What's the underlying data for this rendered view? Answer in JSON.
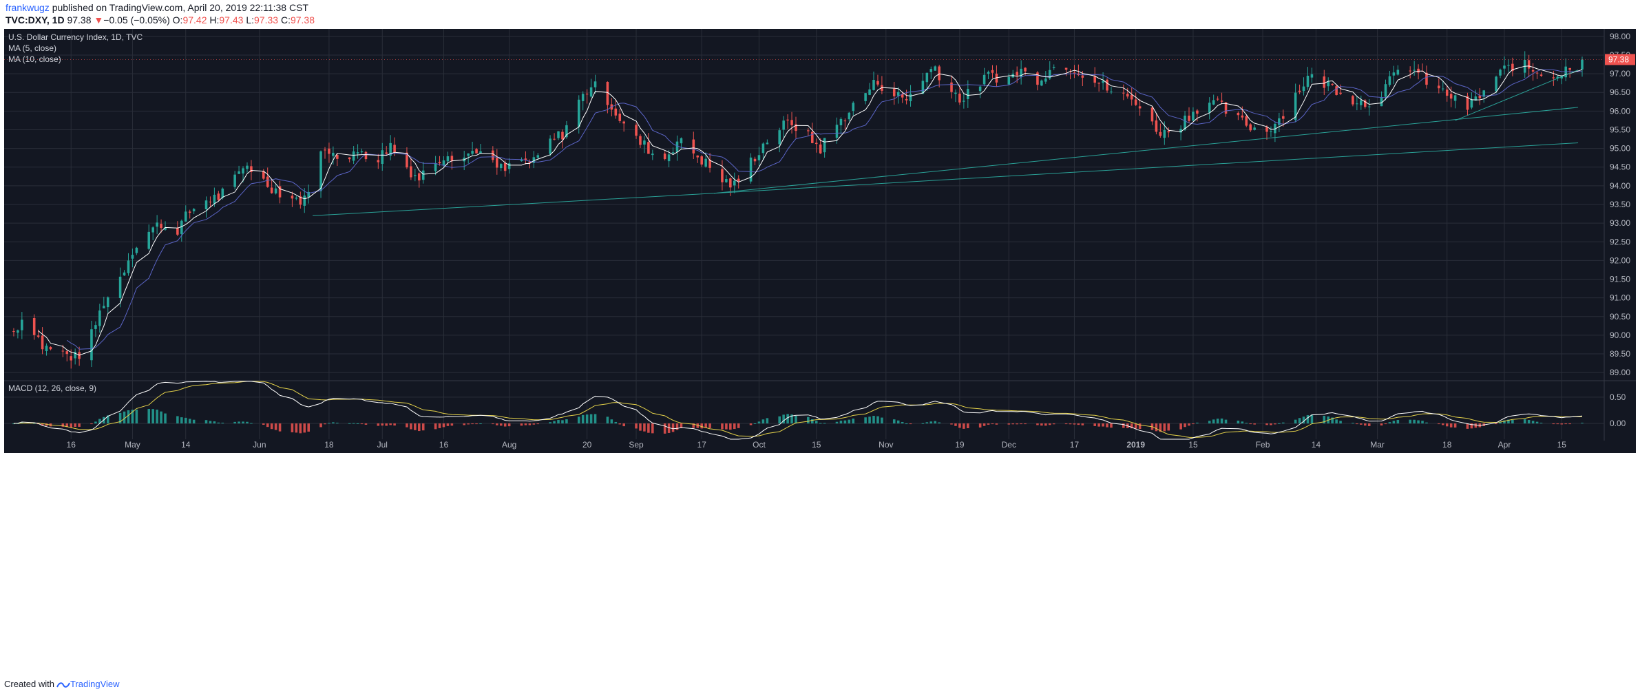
{
  "header": {
    "author": "frankwugz",
    "published_text": " published on TradingView.com, April 20, 2019 22:11:38 CST",
    "symbol": "TVC:DXY, 1D",
    "last": "97.38",
    "change": "−0.05 (−0.05%)",
    "open_label": "O:",
    "open": "97.42",
    "high_label": "H:",
    "high": "97.43",
    "low_label": "L:",
    "low": "97.33",
    "close_label": "C:",
    "close": "97.38"
  },
  "legend": {
    "title": "U.S. Dollar Currency Index, 1D, TVC",
    "ma5": "MA (5, close)",
    "ma10": "MA (10, close)",
    "macd": "MACD (12, 26, close, 9)"
  },
  "price_label": "97.38",
  "footer": {
    "created_with": "Created with",
    "brand": "TradingView"
  },
  "colors": {
    "background": "#131722",
    "grid": "#2a2e39",
    "up": "#26a69a",
    "down": "#ef5350",
    "ma5": "#ffffff",
    "ma10": "#5b65c7",
    "trendline": "#2aa197",
    "macd_line": "#ffffff",
    "signal_line": "#e5d24a",
    "text": "#b2b5be"
  },
  "chart_data": [
    {
      "type": "candlestick",
      "title": "U.S. Dollar Currency Index, 1D, TVC",
      "y_ticks": [
        "98.00",
        "97.50",
        "97.00",
        "96.50",
        "96.00",
        "95.50",
        "95.00",
        "94.50",
        "94.00",
        "93.50",
        "93.00",
        "92.50",
        "92.00",
        "91.50",
        "91.00",
        "90.50",
        "90.00",
        "89.50",
        "89.00"
      ],
      "ylim": [
        88.8,
        98.2
      ],
      "x_ticks": [
        "16",
        "May",
        "14",
        "Jun",
        "18",
        "Jul",
        "16",
        "Aug",
        "20",
        "Sep",
        "17",
        "Oct",
        "15",
        "Nov",
        "19",
        "Dec",
        "17",
        "2019",
        "15",
        "Feb",
        "14",
        "Mar",
        "18",
        "Apr",
        "15"
      ],
      "x_ticks_bold": [
        "2019"
      ],
      "grid": true,
      "series": [
        "MA (5, close)",
        "MA (10, close)"
      ],
      "trendlines": [
        {
          "from": [
            "Jun 14",
            93.2
          ],
          "to": [
            "Sep 20",
            93.8
          ]
        },
        {
          "from": [
            "Sep 20",
            93.8
          ],
          "to": [
            "Apr 20",
            95.15
          ]
        },
        {
          "from": [
            "Sep 20",
            93.8
          ],
          "to": [
            "Apr 20",
            96.1
          ]
        },
        {
          "from": [
            "Mar 20",
            95.75
          ],
          "to": [
            "Apr 20",
            97.1
          ]
        }
      ],
      "price_path": [
        [
          "Apr 2",
          90.1
        ],
        [
          "Apr 5",
          90.6
        ],
        [
          "Apr 9",
          89.7
        ],
        [
          "Apr 13",
          89.55
        ],
        [
          "Apr 17",
          89.4
        ],
        [
          "Apr 20",
          89.7
        ],
        [
          "Apr 24",
          90.9
        ],
        [
          "Apr 27",
          91.3
        ],
        [
          "May 1",
          92.3
        ],
        [
          "May 4",
          92.7
        ],
        [
          "May 8",
          93.0
        ],
        [
          "May 11",
          92.7
        ],
        [
          "May 15",
          93.3
        ],
        [
          "May 18",
          93.6
        ],
        [
          "May 22",
          93.7
        ],
        [
          "May 25",
          94.0
        ],
        [
          "May 29",
          94.6
        ],
        [
          "Jun 1",
          94.2
        ],
        [
          "Jun 5",
          93.9
        ],
        [
          "Jun 8",
          93.7
        ],
        [
          "Jun 12",
          93.6
        ],
        [
          "Jun 15",
          94.8
        ],
        [
          "Jun 19",
          95.0
        ],
        [
          "Jun 22",
          94.6
        ],
        [
          "Jun 26",
          95.0
        ],
        [
          "Jun 29",
          94.6
        ],
        [
          "Jul 3",
          95.1
        ],
        [
          "Jul 6",
          94.6
        ],
        [
          "Jul 10",
          94.2
        ],
        [
          "Jul 13",
          94.6
        ],
        [
          "Jul 17",
          94.9
        ],
        [
          "Jul 20",
          94.7
        ],
        [
          "Jul 24",
          95.0
        ],
        [
          "Jul 27",
          94.6
        ],
        [
          "Jul 31",
          94.4
        ],
        [
          "Aug 3",
          94.7
        ],
        [
          "Aug 7",
          94.6
        ],
        [
          "Aug 10",
          95.1
        ],
        [
          "Aug 14",
          95.4
        ],
        [
          "Aug 17",
          96.1
        ],
        [
          "Aug 21",
          96.7
        ],
        [
          "Aug 24",
          96.5
        ],
        [
          "Aug 28",
          95.8
        ],
        [
          "Aug 31",
          95.3
        ],
        [
          "Sep 4",
          95.0
        ],
        [
          "Sep 7",
          94.6
        ],
        [
          "Sep 11",
          95.2
        ],
        [
          "Sep 14",
          95.0
        ],
        [
          "Sep 18",
          94.6
        ],
        [
          "Sep 21",
          94.2
        ],
        [
          "Sep 25",
          94.0
        ],
        [
          "Sep 28",
          94.5
        ],
        [
          "Oct 2",
          95.1
        ],
        [
          "Oct 5",
          95.5
        ],
        [
          "Oct 9",
          95.7
        ],
        [
          "Oct 12",
          95.4
        ],
        [
          "Oct 16",
          95.0
        ],
        [
          "Oct 19",
          95.5
        ],
        [
          "Oct 23",
          96.0
        ],
        [
          "Oct 26",
          96.4
        ],
        [
          "Oct 30",
          96.8
        ],
        [
          "Nov 2",
          96.5
        ],
        [
          "Nov 6",
          96.3
        ],
        [
          "Nov 9",
          96.8
        ],
        [
          "Nov 13",
          97.2
        ],
        [
          "Nov 16",
          96.6
        ],
        [
          "Nov 20",
          96.3
        ],
        [
          "Nov 23",
          96.7
        ],
        [
          "Nov 27",
          97.0
        ],
        [
          "Nov 30",
          96.8
        ],
        [
          "Dec 4",
          97.1
        ],
        [
          "Dec 7",
          96.8
        ],
        [
          "Dec 11",
          97.1
        ],
        [
          "Dec 14",
          97.3
        ],
        [
          "Dec 18",
          97.1
        ],
        [
          "Dec 21",
          96.9
        ],
        [
          "Dec 25",
          96.6
        ],
        [
          "Dec 28",
          96.4
        ],
        [
          "Jan 1",
          96.3
        ],
        [
          "Jan 4",
          95.7
        ],
        [
          "Jan 8",
          95.4
        ],
        [
          "Jan 11",
          95.6
        ],
        [
          "Jan 15",
          96.0
        ],
        [
          "Jan 18",
          96.3
        ],
        [
          "Jan 22",
          96.1
        ],
        [
          "Jan 25",
          95.8
        ],
        [
          "Jan 29",
          95.6
        ],
        [
          "Feb 1",
          95.4
        ],
        [
          "Feb 5",
          95.8
        ],
        [
          "Feb 8",
          96.3
        ],
        [
          "Feb 12",
          96.9
        ],
        [
          "Feb 15",
          96.8
        ],
        [
          "Feb 19",
          96.6
        ],
        [
          "Feb 22",
          96.4
        ],
        [
          "Feb 26",
          96.2
        ],
        [
          "Mar 1",
          96.4
        ],
        [
          "Mar 5",
          96.9
        ],
        [
          "Mar 8",
          97.3
        ],
        [
          "Mar 12",
          96.9
        ],
        [
          "Mar 15",
          96.6
        ],
        [
          "Mar 19",
          96.4
        ],
        [
          "Mar 22",
          96.0
        ],
        [
          "Mar 26",
          96.4
        ],
        [
          "Mar 29",
          96.8
        ],
        [
          "Apr 2",
          97.1
        ],
        [
          "Apr 5",
          97.3
        ],
        [
          "Apr 9",
          97.1
        ],
        [
          "Apr 12",
          97.0
        ],
        [
          "Apr 16",
          97.0
        ],
        [
          "Apr 19",
          97.38
        ]
      ]
    },
    {
      "type": "line",
      "title": "MACD (12, 26, close, 9)",
      "y_ticks": [
        "0.50",
        "0.00"
      ],
      "ylim": [
        -0.3,
        0.8
      ],
      "series": [
        "MACD",
        "Signal",
        "Histogram"
      ]
    }
  ]
}
